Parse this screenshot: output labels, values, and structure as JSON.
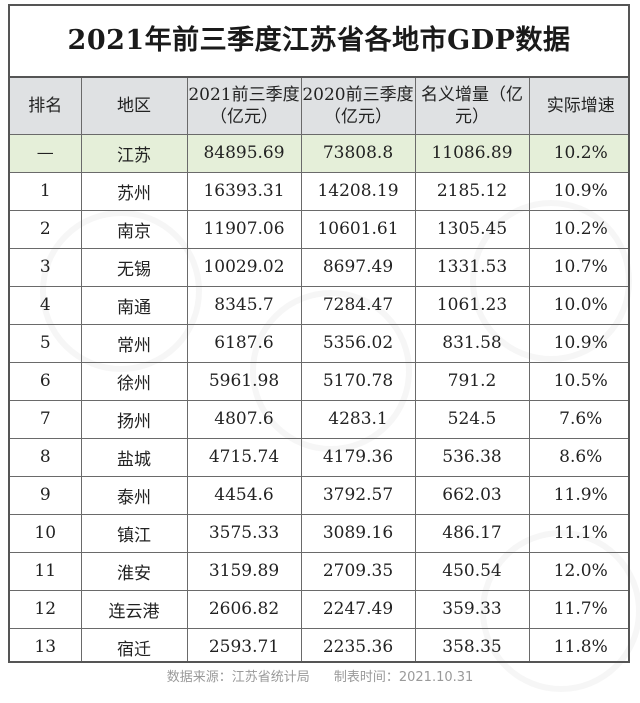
{
  "title": "2021年前三季度江苏省各地市GDP数据",
  "headers": [
    "排名",
    "地区",
    "2021前三季度（亿元）",
    "2020前三季度（亿元）",
    "名义增量（亿元）",
    "实际增速"
  ],
  "rows": [
    {
      "rank": "—",
      "region": "江苏",
      "gdp2021": "84895.69",
      "gdp2020": "73808.8",
      "increase": "11086.89",
      "growth": "10.2%"
    },
    {
      "rank": "1",
      "region": "苏州",
      "gdp2021": "16393.31",
      "gdp2020": "14208.19",
      "increase": "2185.12",
      "growth": "10.9%"
    },
    {
      "rank": "2",
      "region": "南京",
      "gdp2021": "11907.06",
      "gdp2020": "10601.61",
      "increase": "1305.45",
      "growth": "10.2%"
    },
    {
      "rank": "3",
      "region": "无锡",
      "gdp2021": "10029.02",
      "gdp2020": "8697.49",
      "increase": "1331.53",
      "growth": "10.7%"
    },
    {
      "rank": "4",
      "region": "南通",
      "gdp2021": "8345.7",
      "gdp2020": "7284.47",
      "increase": "1061.23",
      "growth": "10.0%"
    },
    {
      "rank": "5",
      "region": "常州",
      "gdp2021": "6187.6",
      "gdp2020": "5356.02",
      "increase": "831.58",
      "growth": "10.9%"
    },
    {
      "rank": "6",
      "region": "徐州",
      "gdp2021": "5961.98",
      "gdp2020": "5170.78",
      "increase": "791.2",
      "growth": "10.5%"
    },
    {
      "rank": "7",
      "region": "扬州",
      "gdp2021": "4807.6",
      "gdp2020": "4283.1",
      "increase": "524.5",
      "growth": "7.6%"
    },
    {
      "rank": "8",
      "region": "盐城",
      "gdp2021": "4715.74",
      "gdp2020": "4179.36",
      "increase": "536.38",
      "growth": "8.6%"
    },
    {
      "rank": "9",
      "region": "泰州",
      "gdp2021": "4454.6",
      "gdp2020": "3792.57",
      "increase": "662.03",
      "growth": "11.9%"
    },
    {
      "rank": "10",
      "region": "镇江",
      "gdp2021": "3575.33",
      "gdp2020": "3089.16",
      "increase": "486.17",
      "growth": "11.1%"
    },
    {
      "rank": "11",
      "region": "淮安",
      "gdp2021": "3159.89",
      "gdp2020": "2709.35",
      "increase": "450.54",
      "growth": "12.0%"
    },
    {
      "rank": "12",
      "region": "连云港",
      "gdp2021": "2606.82",
      "gdp2020": "2247.49",
      "increase": "359.33",
      "growth": "11.7%"
    },
    {
      "rank": "13",
      "region": "宿迁",
      "gdp2021": "2593.71",
      "gdp2020": "2235.36",
      "increase": "358.35",
      "growth": "11.8%"
    }
  ],
  "footer": {
    "source": "数据来源：江苏省统计局",
    "date": "制表时间：2021.10.31"
  },
  "colors": {
    "header_bg": "#dfe1e3",
    "total_row_bg": "#e5efd9",
    "border": "#555555"
  }
}
